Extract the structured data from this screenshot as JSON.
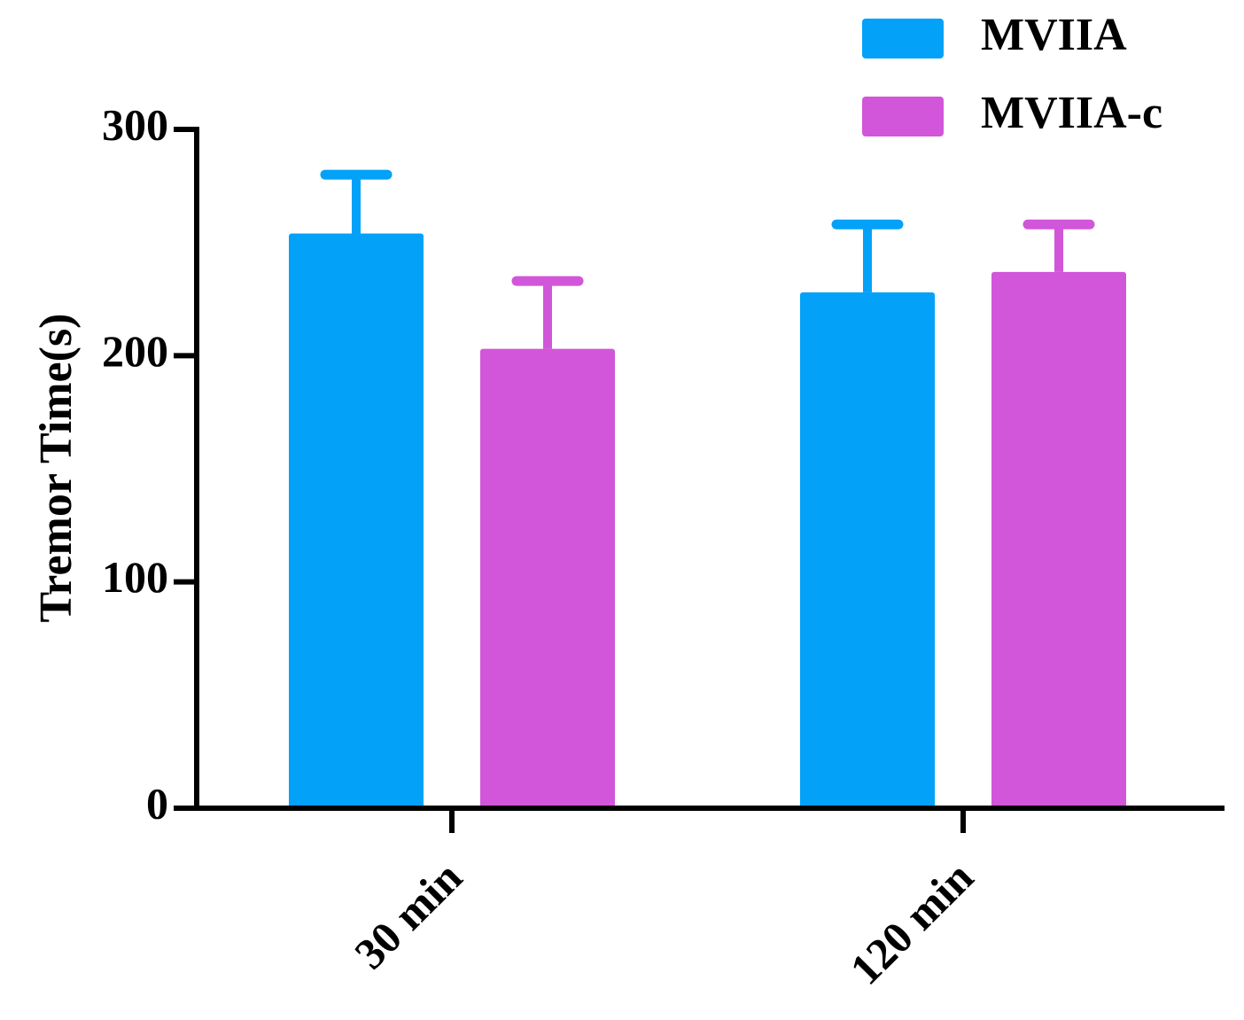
{
  "chart_data": {
    "type": "bar",
    "title": "",
    "xlabel": "",
    "ylabel": "Tremor Time(s)",
    "ylim": [
      0,
      300
    ],
    "yticks": [
      0,
      100,
      200,
      300
    ],
    "categories": [
      "30 min",
      "120 min"
    ],
    "series": [
      {
        "name": "MVIIA",
        "color": "#03a1f8",
        "values": [
          254,
          228
        ],
        "error": [
          26,
          30
        ]
      },
      {
        "name": "MVIIA-c",
        "color": "#d156d9",
        "values": [
          203,
          237
        ],
        "error": [
          30,
          21
        ]
      }
    ],
    "legend_position": "top-right",
    "grid": false
  }
}
